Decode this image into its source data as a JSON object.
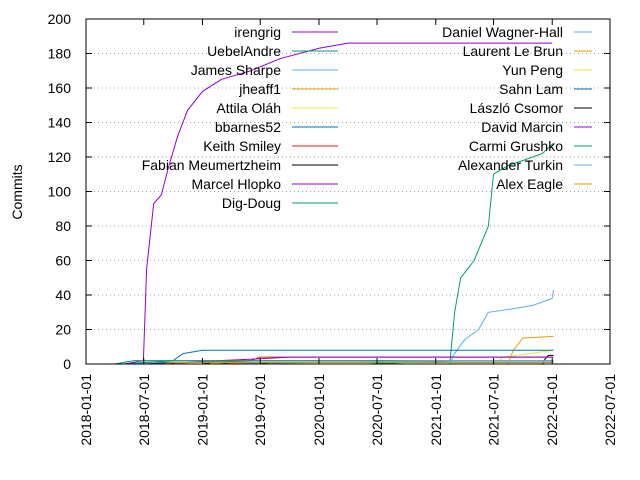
{
  "chart_data": {
    "type": "line",
    "title": "",
    "xlabel": "",
    "ylabel": "Commits",
    "xlim": [
      "2018-01-01",
      "2022-07-01"
    ],
    "ylim": [
      0,
      200
    ],
    "x_ticks": [
      "2018-01-01",
      "2018-07-01",
      "2019-01-01",
      "2019-07-01",
      "2020-01-01",
      "2020-07-01",
      "2021-01-01",
      "2021-07-01",
      "2022-01-01",
      "2022-07-01"
    ],
    "y_ticks": [
      0,
      20,
      40,
      60,
      80,
      100,
      120,
      140,
      160,
      180,
      200
    ],
    "grid": "horizontal dotted",
    "legend_position": "top (two columns)",
    "series": [
      {
        "name": "irengrig",
        "color": "#9400d3",
        "points": [
          [
            "2018-05-01",
            0
          ],
          [
            "2018-06-30",
            2
          ],
          [
            "2018-07-10",
            55
          ],
          [
            "2018-08-01",
            93
          ],
          [
            "2018-08-25",
            98
          ],
          [
            "2018-09-15",
            113
          ],
          [
            "2018-10-15",
            132
          ],
          [
            "2018-11-15",
            147
          ],
          [
            "2019-01-01",
            158
          ],
          [
            "2019-03-01",
            165
          ],
          [
            "2019-06-01",
            170
          ],
          [
            "2019-09-01",
            177
          ],
          [
            "2020-01-01",
            183
          ],
          [
            "2020-04-01",
            186
          ],
          [
            "2020-07-01",
            186
          ],
          [
            "2021-01-01",
            186
          ],
          [
            "2022-01-01",
            186
          ]
        ]
      },
      {
        "name": "UebelAndre",
        "color": "#009e73",
        "points": [
          [
            "2018-07-01",
            0
          ],
          [
            "2020-06-01",
            0
          ],
          [
            "2021-02-15",
            2
          ],
          [
            "2021-03-01",
            30
          ],
          [
            "2021-03-20",
            50
          ],
          [
            "2021-05-01",
            60
          ],
          [
            "2021-06-15",
            80
          ],
          [
            "2021-07-01",
            110
          ],
          [
            "2021-08-15",
            115
          ],
          [
            "2021-10-01",
            118
          ],
          [
            "2021-12-01",
            122
          ],
          [
            "2022-01-05",
            128
          ]
        ]
      },
      {
        "name": "James Sharpe",
        "color": "#56b4e9",
        "points": [
          [
            "2021-02-15",
            0
          ],
          [
            "2021-02-25",
            5
          ],
          [
            "2021-04-01",
            14
          ],
          [
            "2021-05-15",
            20
          ],
          [
            "2021-06-15",
            30
          ],
          [
            "2021-09-01",
            32
          ],
          [
            "2021-11-01",
            34
          ],
          [
            "2022-01-01",
            38
          ],
          [
            "2022-01-05",
            43
          ]
        ]
      },
      {
        "name": "jheaff1",
        "color": "#e69f00",
        "points": [
          [
            "2020-03-01",
            0
          ],
          [
            "2021-08-15",
            0
          ],
          [
            "2021-09-01",
            8
          ],
          [
            "2021-10-01",
            15
          ],
          [
            "2022-01-05",
            16
          ]
        ]
      },
      {
        "name": "Attila Oláh",
        "color": "#f0e442",
        "points": [
          [
            "2018-01-01",
            0
          ],
          [
            "2021-07-01",
            0
          ],
          [
            "2021-08-01",
            4
          ],
          [
            "2022-01-05",
            8
          ]
        ]
      },
      {
        "name": "bbarnes52",
        "color": "#0072b2",
        "points": [
          [
            "2018-05-01",
            0
          ],
          [
            "2018-10-01",
            2
          ],
          [
            "2018-11-01",
            6
          ],
          [
            "2019-01-01",
            8
          ],
          [
            "2022-01-05",
            8
          ]
        ]
      },
      {
        "name": "Keith Smiley",
        "color": "#e51e10",
        "points": [
          [
            "2018-07-01",
            0
          ],
          [
            "2019-06-01",
            2
          ],
          [
            "2019-07-01",
            4
          ],
          [
            "2022-01-05",
            4
          ]
        ]
      },
      {
        "name": "Fabian Meumertzheim",
        "color": "#000000",
        "points": [
          [
            "2021-03-01",
            0
          ],
          [
            "2021-12-01",
            0
          ],
          [
            "2021-12-10",
            3
          ],
          [
            "2021-12-20",
            5
          ],
          [
            "2022-01-05",
            5
          ]
        ]
      },
      {
        "name": "Marcel Hlopko",
        "color": "#9400d3",
        "points": [
          [
            "2018-07-01",
            0
          ],
          [
            "2019-07-01",
            3
          ],
          [
            "2019-10-01",
            4
          ],
          [
            "2022-01-05",
            4
          ]
        ]
      },
      {
        "name": "Dig-Doug",
        "color": "#009e73",
        "points": [
          [
            "2018-04-01",
            0
          ],
          [
            "2018-06-01",
            2
          ],
          [
            "2022-01-05",
            2
          ]
        ]
      },
      {
        "name": "Daniel Wagner-Hall",
        "color": "#56b4e9",
        "points": [
          [
            "2019-02-01",
            0
          ],
          [
            "2021-02-01",
            2
          ],
          [
            "2022-01-05",
            2
          ]
        ]
      },
      {
        "name": "Laurent Le Brun",
        "color": "#e69f00",
        "points": [
          [
            "2019-02-01",
            0
          ],
          [
            "2019-06-01",
            1
          ],
          [
            "2022-01-05",
            1
          ]
        ]
      },
      {
        "name": "Yun Peng",
        "color": "#f0e442",
        "points": [
          [
            "2019-01-01",
            0
          ],
          [
            "2019-03-01",
            1
          ],
          [
            "2022-01-05",
            1
          ]
        ]
      },
      {
        "name": "Sahn Lam",
        "color": "#0072b2",
        "points": [
          [
            "2019-03-01",
            0
          ],
          [
            "2019-04-01",
            1
          ],
          [
            "2022-01-05",
            1
          ]
        ]
      },
      {
        "name": "László Csomor",
        "color": "#000000",
        "points": [
          [
            "2019-01-01",
            0
          ],
          [
            "2019-02-01",
            1
          ],
          [
            "2022-01-05",
            1
          ]
        ]
      },
      {
        "name": "David Marcin",
        "color": "#9400d3",
        "points": [
          [
            "2019-07-01",
            0
          ],
          [
            "2019-08-01",
            1
          ],
          [
            "2022-01-05",
            1
          ]
        ]
      },
      {
        "name": "Carmi Grushko",
        "color": "#009e73",
        "points": [
          [
            "2018-06-01",
            0
          ],
          [
            "2018-07-01",
            1
          ],
          [
            "2022-01-05",
            1
          ]
        ]
      },
      {
        "name": "Alexander Turkin",
        "color": "#56b4e9",
        "points": [
          [
            "2018-10-01",
            0
          ],
          [
            "2018-11-01",
            1
          ],
          [
            "2022-01-05",
            1
          ]
        ]
      },
      {
        "name": "Alex Eagle",
        "color": "#e69f00",
        "points": [
          [
            "2018-09-01",
            0
          ],
          [
            "2018-10-01",
            1
          ],
          [
            "2022-01-05",
            1
          ]
        ]
      }
    ]
  }
}
